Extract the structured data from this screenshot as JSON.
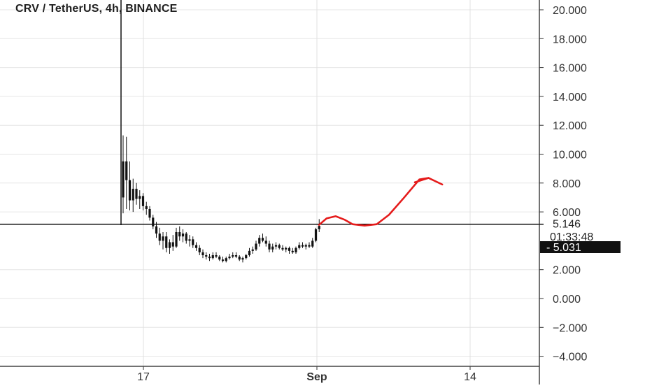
{
  "chart_data": {
    "type": "candlestick",
    "title": "CRV / TetherUS, 4h, BINANCE",
    "x_ticks": [
      "17",
      "Sep",
      "14"
    ],
    "y_ticks": [
      "20.000",
      "18.000",
      "16.000",
      "14.000",
      "12.000",
      "10.000",
      "8.000",
      "6.000",
      "2.000",
      "0.000",
      "−2.000",
      "−4.000"
    ],
    "ylim": [
      -4.6,
      20.6
    ],
    "grid": true,
    "horizontal_line": 5.146,
    "horizontal_line_label": "5.146",
    "countdown_label": "01:33:48",
    "last_price": 5.031,
    "last_price_label": "5.031",
    "candle_color": "#111111",
    "annotation_color": "#e51b1b",
    "candles": [
      [
        7.0,
        11.3,
        5.9,
        9.5
      ],
      [
        9.5,
        11.2,
        6.2,
        8.2
      ],
      [
        8.2,
        9.5,
        6.1,
        6.8
      ],
      [
        6.8,
        8.3,
        6.0,
        7.6
      ],
      [
        7.6,
        8.0,
        6.5,
        6.9
      ],
      [
        6.9,
        7.5,
        6.2,
        7.1
      ],
      [
        7.1,
        7.3,
        6.1,
        6.4
      ],
      [
        6.4,
        6.7,
        5.8,
        6.2
      ],
      [
        6.2,
        6.4,
        5.4,
        5.6
      ],
      [
        5.6,
        5.8,
        4.8,
        5.0
      ],
      [
        5.0,
        5.3,
        4.2,
        4.5
      ],
      [
        4.5,
        4.9,
        3.7,
        4.0
      ],
      [
        4.0,
        4.6,
        3.4,
        4.3
      ],
      [
        4.3,
        4.6,
        3.2,
        3.5
      ],
      [
        3.5,
        4.1,
        3.1,
        3.9
      ],
      [
        3.9,
        4.4,
        3.3,
        3.6
      ],
      [
        3.6,
        4.9,
        3.5,
        4.6
      ],
      [
        4.6,
        5.0,
        4.0,
        4.3
      ],
      [
        4.3,
        4.8,
        3.9,
        4.5
      ],
      [
        4.5,
        4.6,
        3.8,
        4.0
      ],
      [
        4.0,
        4.4,
        3.6,
        4.1
      ],
      [
        4.1,
        4.3,
        3.5,
        3.7
      ],
      [
        3.7,
        3.9,
        3.3,
        3.5
      ],
      [
        3.5,
        3.7,
        3.0,
        3.2
      ],
      [
        3.2,
        3.4,
        2.8,
        3.0
      ],
      [
        3.0,
        3.2,
        2.7,
        2.9
      ],
      [
        2.9,
        3.1,
        2.6,
        2.8
      ],
      [
        2.8,
        3.2,
        2.7,
        3.0
      ],
      [
        3.0,
        3.2,
        2.8,
        2.9
      ],
      [
        2.9,
        3.0,
        2.6,
        2.7
      ],
      [
        2.7,
        2.9,
        2.5,
        2.6
      ],
      [
        2.6,
        2.9,
        2.5,
        2.8
      ],
      [
        2.8,
        3.1,
        2.7,
        2.9
      ],
      [
        2.9,
        3.2,
        2.8,
        3.0
      ],
      [
        3.0,
        3.2,
        2.8,
        2.9
      ],
      [
        2.9,
        3.0,
        2.6,
        2.7
      ],
      [
        2.7,
        2.9,
        2.5,
        2.8
      ],
      [
        2.8,
        3.1,
        2.7,
        3.0
      ],
      [
        3.0,
        3.5,
        2.9,
        3.3
      ],
      [
        3.3,
        3.6,
        3.1,
        3.4
      ],
      [
        3.4,
        4.0,
        3.3,
        3.8
      ],
      [
        3.8,
        4.4,
        3.6,
        4.2
      ],
      [
        4.2,
        4.5,
        3.9,
        4.0
      ],
      [
        4.0,
        4.3,
        3.6,
        3.8
      ],
      [
        3.8,
        4.0,
        3.2,
        3.4
      ],
      [
        3.4,
        3.8,
        3.2,
        3.6
      ],
      [
        3.6,
        3.9,
        3.4,
        3.7
      ],
      [
        3.7,
        3.8,
        3.4,
        3.5
      ],
      [
        3.5,
        3.7,
        3.3,
        3.4
      ],
      [
        3.4,
        3.6,
        3.2,
        3.5
      ],
      [
        3.5,
        3.6,
        3.1,
        3.3
      ],
      [
        3.3,
        3.5,
        3.1,
        3.2
      ],
      [
        3.2,
        3.6,
        3.1,
        3.5
      ],
      [
        3.5,
        3.9,
        3.4,
        3.7
      ],
      [
        3.7,
        3.9,
        3.5,
        3.6
      ],
      [
        3.6,
        3.8,
        3.4,
        3.7
      ],
      [
        3.7,
        3.9,
        3.5,
        3.6
      ],
      [
        3.6,
        4.2,
        3.5,
        4.0
      ],
      [
        4.0,
        4.9,
        3.9,
        4.8
      ],
      [
        4.8,
        5.5,
        4.6,
        5.03
      ]
    ],
    "annotation_path": [
      [
        0.0,
        5.1
      ],
      [
        2.5,
        5.55
      ],
      [
        5.5,
        5.7
      ],
      [
        8.5,
        5.45
      ],
      [
        11.0,
        5.15
      ],
      [
        15.0,
        5.05
      ],
      [
        19.0,
        5.15
      ],
      [
        23.0,
        5.8
      ],
      [
        28.0,
        7.0
      ],
      [
        33.0,
        8.25
      ],
      [
        36.0,
        8.35
      ]
    ],
    "annotation_arrowhead": [
      [
        31.5,
        8.05
      ],
      [
        36.0,
        8.35
      ],
      [
        40.5,
        7.9
      ]
    ]
  }
}
